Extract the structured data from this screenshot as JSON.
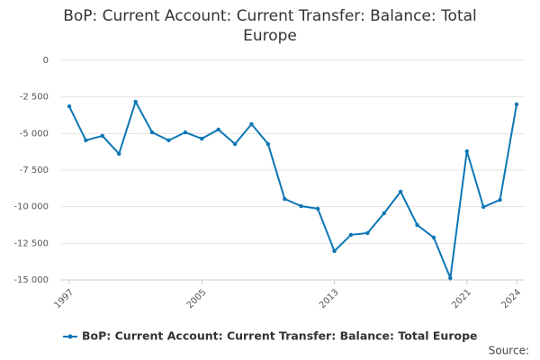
{
  "chart_data": {
    "type": "line",
    "title": "BoP: Current Account: Current Transfer: Balance: Total Europe",
    "x": [
      1997,
      1998,
      1999,
      2000,
      2001,
      2002,
      2003,
      2004,
      2005,
      2006,
      2007,
      2008,
      2009,
      2010,
      2011,
      2012,
      2013,
      2014,
      2015,
      2016,
      2017,
      2018,
      2019,
      2020,
      2021,
      2022,
      2023,
      2024
    ],
    "series": [
      {
        "name": "BoP: Current Account: Current Transfer: Balance: Total Europe",
        "color": "#0b76b5",
        "values": [
          -3150,
          -5470,
          -5160,
          -6390,
          -2830,
          -4920,
          -5470,
          -4920,
          -5350,
          -4730,
          -5720,
          -4360,
          -5720,
          -9470,
          -9960,
          -10140,
          -13030,
          -11920,
          -11800,
          -10450,
          -8970,
          -11250,
          -12110,
          -14870,
          -6210,
          -10020,
          -9530,
          -3010
        ]
      }
    ],
    "xlim": [
      1997,
      2024
    ],
    "xticks": [
      1997,
      2005,
      2013,
      2021,
      2024
    ],
    "ylim": [
      -15000,
      0
    ],
    "yticks": [
      {
        "value": -15000,
        "label": "-15 000"
      },
      {
        "value": -12500,
        "label": "-12 500"
      },
      {
        "value": -10000,
        "label": "-10 000"
      },
      {
        "value": -7500,
        "label": "-7 500"
      },
      {
        "value": -5000,
        "label": "-5 000"
      },
      {
        "value": -2500,
        "label": "-2 500"
      },
      0
    ],
    "grid": true,
    "source": "Source:"
  }
}
